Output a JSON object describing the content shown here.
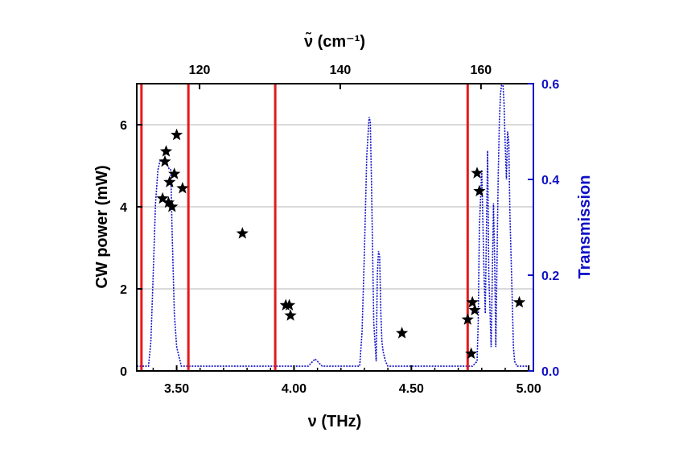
{
  "chart_data": {
    "type": "scatter",
    "title": "",
    "xlabel": "ν (THz)",
    "x2label": "ν̃ (cm⁻¹)",
    "ylabel": "CW power (mW)",
    "y2label": "Transmission",
    "xlim": [
      3.33,
      5.02
    ],
    "ylim": [
      0,
      7
    ],
    "y2lim": [
      0,
      0.6
    ],
    "x_ticks": [
      "3.50",
      "4.00",
      "4.50",
      "5.00"
    ],
    "x_tick_values": [
      3.5,
      4.0,
      4.5,
      5.0
    ],
    "x2_ticks": [
      "120",
      "140",
      "160"
    ],
    "x2_tick_values": [
      120,
      140,
      160
    ],
    "y_ticks": [
      "0",
      "2",
      "4",
      "6"
    ],
    "y_tick_values": [
      0,
      2,
      4,
      6
    ],
    "y2_ticks": [
      "0.0",
      "0.2",
      "0.4",
      "0.6"
    ],
    "y2_tick_values": [
      0.0,
      0.2,
      0.4,
      0.6
    ],
    "grid": "horizontal",
    "colors": {
      "stars": "#000000",
      "transmission": "#1010c8",
      "vlines": "#e41a1c",
      "right_axis": "#1010c8",
      "grid": "#b4b4b4"
    },
    "vlines_x": [
      3.35,
      3.55,
      3.92,
      4.74
    ],
    "series": [
      {
        "type": "scatter",
        "marker": "star",
        "x": [
          3.44,
          3.45,
          3.455,
          3.465,
          3.47,
          3.48,
          3.49,
          3.5,
          3.525,
          3.78,
          3.965,
          3.98,
          3.985,
          4.46,
          4.74,
          4.755,
          4.76,
          4.77,
          4.78,
          4.79,
          4.96
        ],
        "y": [
          4.2,
          5.1,
          5.35,
          4.1,
          4.6,
          4.0,
          4.8,
          5.75,
          4.45,
          3.35,
          1.6,
          1.6,
          1.35,
          0.92,
          1.25,
          0.42,
          1.67,
          1.48,
          4.82,
          4.38,
          1.67
        ]
      },
      {
        "type": "line",
        "style": "dotted",
        "axis": "right",
        "x": [
          3.33,
          3.38,
          3.39,
          3.4,
          3.41,
          3.42,
          3.43,
          3.45,
          3.47,
          3.475,
          3.48,
          3.49,
          3.5,
          3.52,
          3.6,
          3.7,
          3.8,
          3.9,
          4.0,
          4.06,
          4.08,
          4.09,
          4.1,
          4.12,
          4.2,
          4.28,
          4.29,
          4.3,
          4.31,
          4.32,
          4.325,
          4.33,
          4.34,
          4.35,
          4.355,
          4.36,
          4.365,
          4.37,
          4.375,
          4.38,
          4.39,
          4.4,
          4.42,
          4.5,
          4.6,
          4.7,
          4.76,
          4.78,
          4.785,
          4.79,
          4.8,
          4.81,
          4.815,
          4.82,
          4.825,
          4.83,
          4.84,
          4.85,
          4.855,
          4.86,
          4.87,
          4.875,
          4.88,
          4.885,
          4.89,
          4.895,
          4.9,
          4.905,
          4.91,
          4.915,
          4.92,
          4.93,
          4.935,
          4.94,
          4.95,
          4.96,
          4.97,
          4.98,
          4.99,
          5.0
        ],
        "y": [
          0.01,
          0.01,
          0.06,
          0.2,
          0.35,
          0.42,
          0.44,
          0.44,
          0.42,
          0.42,
          0.3,
          0.12,
          0.05,
          0.01,
          0.01,
          0.01,
          0.01,
          0.01,
          0.01,
          0.01,
          0.02,
          0.025,
          0.02,
          0.01,
          0.01,
          0.01,
          0.08,
          0.25,
          0.45,
          0.53,
          0.52,
          0.4,
          0.1,
          0.02,
          0.2,
          0.25,
          0.24,
          0.12,
          0.06,
          0.04,
          0.02,
          0.01,
          0.01,
          0.01,
          0.01,
          0.01,
          0.01,
          0.02,
          0.1,
          0.3,
          0.42,
          0.2,
          0.12,
          0.3,
          0.46,
          0.2,
          0.05,
          0.35,
          0.23,
          0.05,
          0.4,
          0.52,
          0.58,
          0.6,
          0.6,
          0.56,
          0.47,
          0.4,
          0.5,
          0.48,
          0.33,
          0.15,
          0.05,
          0.02,
          0.01,
          0.01,
          0.01,
          0.01,
          0.01,
          0.01
        ]
      }
    ]
  }
}
